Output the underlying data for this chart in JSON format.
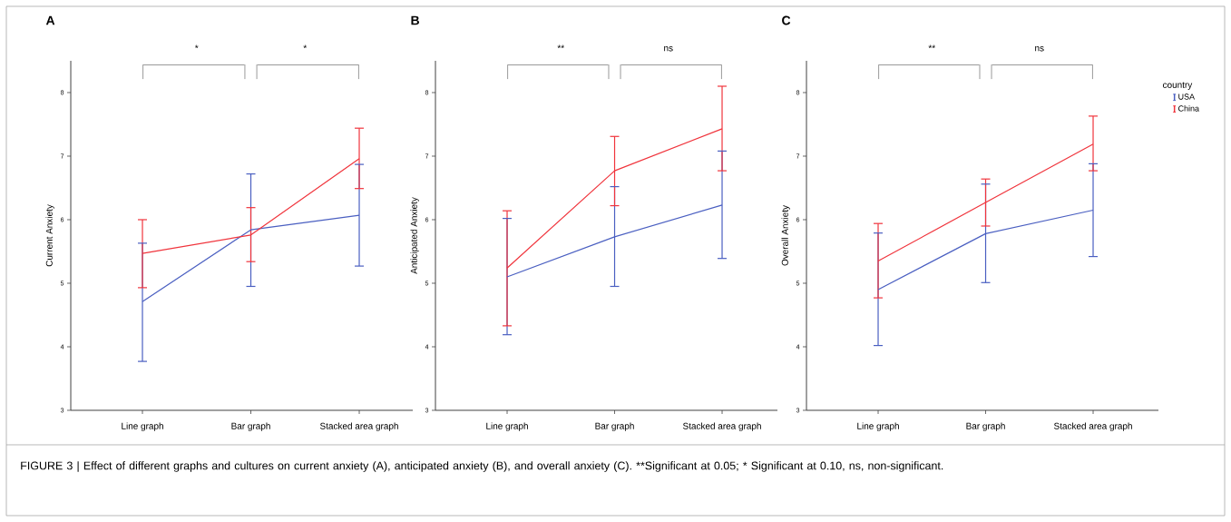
{
  "chart_data": [
    {
      "type": "line",
      "title": "A",
      "ylabel": "Current Anxiety",
      "categories": [
        "Line graph",
        "Bar graph",
        "Stacked area graph"
      ],
      "ylim": [
        3,
        8.5
      ],
      "yticks": [
        3,
        4,
        5,
        6,
        7,
        8
      ],
      "series": [
        {
          "color": "#4a5fc1",
          "values": [
            4.71,
            5.84,
            6.07
          ],
          "errors": [
            [
              3.77,
              5.63
            ],
            [
              4.95,
              6.72
            ],
            [
              5.27,
              6.87
            ]
          ]
        },
        {
          "color": "#f0343c",
          "values": [
            5.47,
            5.76,
            6.96
          ],
          "errors": [
            [
              4.93,
              6.0
            ],
            [
              5.34,
              6.19
            ],
            [
              6.49,
              7.44
            ]
          ]
        }
      ],
      "annotations": [
        "*",
        "*",
        "FIGURE 3 | Effect of different graphs and cultures on current anxiety (A), anticipated anxiety (B), and overall anxiety (C). **Significant at 0.05; * Significant at 0.10, ns, non-significant."
      ]
    },
    {
      "type": "line",
      "title": "B",
      "ylabel": "Anticipated Anxiety",
      "categories": [
        "Line graph",
        "Bar graph",
        "Stacked area graph"
      ],
      "ylim": [
        3,
        8.5
      ],
      "yticks": [
        3,
        4,
        5,
        6,
        7,
        8
      ],
      "series": [
        {
          "color": "#4a5fc1",
          "values": [
            5.1,
            5.73,
            6.23
          ],
          "errors": [
            [
              4.19,
              6.02
            ],
            [
              4.95,
              6.52
            ],
            [
              5.39,
              7.08
            ]
          ]
        },
        {
          "color": "#f0343c",
          "values": [
            5.24,
            6.77,
            7.43
          ],
          "errors": [
            [
              4.33,
              6.14
            ],
            [
              6.22,
              7.31
            ],
            [
              6.77,
              8.1
            ]
          ]
        }
      ],
      "annotations": [
        "**",
        "ns"
      ]
    },
    {
      "type": "line",
      "title": "C",
      "ylabel": "Overall Anxiety",
      "categories": [
        "Line graph",
        "Bar graph",
        "Stacked area graph"
      ],
      "ylim": [
        3,
        8.5
      ],
      "yticks": [
        3,
        4,
        5,
        6,
        7,
        8
      ],
      "legend": "top right",
      "legend_title": "country",
      "series": [
        {
          "name": "USA",
          "color": "#4a5fc1",
          "values": [
            4.9,
            5.78,
            6.15
          ],
          "errors": [
            [
              4.02,
              5.79
            ],
            [
              5.01,
              6.56
            ],
            [
              5.42,
              6.88
            ]
          ]
        },
        {
          "name": "China",
          "color": "#f0343c",
          "values": [
            5.35,
            6.27,
            7.19
          ],
          "errors": [
            [
              4.77,
              5.94
            ],
            [
              5.9,
              6.64
            ],
            [
              6.77,
              7.63
            ]
          ]
        }
      ],
      "annotations": [
        "**",
        "ns"
      ]
    }
  ]
}
